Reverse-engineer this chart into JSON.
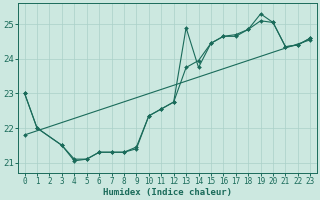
{
  "xlabel": "Humidex (Indice chaleur)",
  "bg_color": "#cce8e0",
  "grid_color": "#aad0c8",
  "line_color": "#1a6b5a",
  "xlim": [
    -0.5,
    23.5
  ],
  "ylim": [
    20.7,
    25.6
  ],
  "yticks": [
    21,
    22,
    23,
    24,
    25
  ],
  "xticks": [
    0,
    1,
    2,
    3,
    4,
    5,
    6,
    7,
    8,
    9,
    10,
    11,
    12,
    13,
    14,
    15,
    16,
    17,
    18,
    19,
    20,
    21,
    22,
    23
  ],
  "line1_x": [
    0,
    1,
    3,
    4,
    5,
    6,
    7,
    8,
    9,
    10,
    11,
    12,
    13,
    14,
    15,
    16,
    17,
    18,
    19,
    20,
    21,
    22,
    23
  ],
  "line1_y": [
    23.0,
    22.0,
    21.5,
    21.1,
    21.1,
    21.3,
    21.3,
    21.3,
    21.4,
    22.35,
    22.55,
    22.75,
    23.75,
    23.95,
    24.45,
    24.65,
    24.7,
    24.85,
    25.3,
    25.05,
    24.35,
    24.4,
    24.6
  ],
  "line2_x": [
    0,
    1,
    3,
    4,
    5,
    6,
    7,
    8,
    9,
    10,
    11,
    12,
    13,
    14,
    15,
    16,
    17,
    18,
    19,
    20,
    21,
    22,
    23
  ],
  "line2_y": [
    23.0,
    22.0,
    21.5,
    21.05,
    21.1,
    21.3,
    21.3,
    21.3,
    21.45,
    22.35,
    22.55,
    22.75,
    24.9,
    23.75,
    24.45,
    24.65,
    24.65,
    24.85,
    25.1,
    25.05,
    24.35,
    24.4,
    24.6
  ],
  "line3_x": [
    0,
    23
  ],
  "line3_y": [
    21.8,
    24.55
  ]
}
